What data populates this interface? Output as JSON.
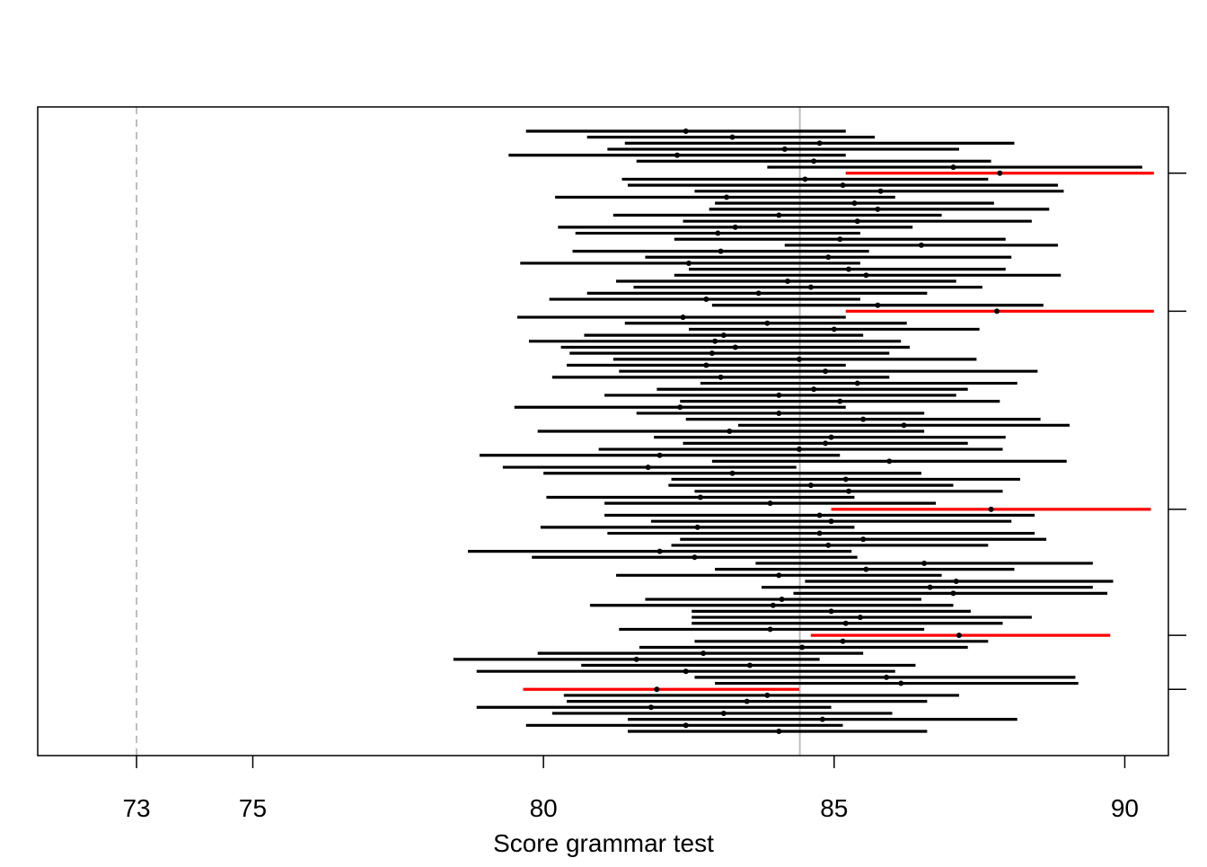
{
  "chart_data": {
    "type": "interval",
    "title": "",
    "xlabel": "Score grammar test",
    "ylabel": "",
    "xlim": [
      71.3,
      90.75
    ],
    "xticks": [
      73,
      75,
      80,
      85,
      90
    ],
    "xtick_labels": [
      "73",
      "75",
      "80",
      "85",
      "90"
    ],
    "y_ticks_on_right": true,
    "y_tick_labels_shown": false,
    "reference_lines": [
      {
        "value": 73,
        "style": "dashed",
        "color": "#bdbdbd"
      },
      {
        "value": 84.41,
        "style": "solid",
        "color": "#bdbdbd"
      }
    ],
    "colors": {
      "normal": "#000000",
      "miss": "#ff0000",
      "refline": "#bdbdbd"
    },
    "series": [
      {
        "name": "",
        "intervals": [
          {
            "lo": 79.7,
            "est": 82.45,
            "hi": 85.2,
            "miss": false
          },
          {
            "lo": 80.75,
            "est": 83.25,
            "hi": 85.7,
            "miss": false
          },
          {
            "lo": 81.4,
            "est": 84.75,
            "hi": 88.1,
            "miss": false
          },
          {
            "lo": 81.1,
            "est": 84.15,
            "hi": 87.15,
            "miss": false
          },
          {
            "lo": 79.4,
            "est": 82.3,
            "hi": 85.2,
            "miss": false
          },
          {
            "lo": 81.6,
            "est": 84.65,
            "hi": 87.7,
            "miss": false
          },
          {
            "lo": 83.85,
            "est": 87.05,
            "hi": 90.3,
            "miss": false
          },
          {
            "lo": 85.2,
            "est": 87.85,
            "hi": 90.5,
            "miss": true
          },
          {
            "lo": 81.35,
            "est": 84.5,
            "hi": 87.65,
            "miss": false
          },
          {
            "lo": 81.45,
            "est": 85.15,
            "hi": 88.85,
            "miss": false
          },
          {
            "lo": 82.6,
            "est": 85.8,
            "hi": 88.95,
            "miss": false
          },
          {
            "lo": 80.2,
            "est": 83.15,
            "hi": 86.05,
            "miss": false
          },
          {
            "lo": 82.95,
            "est": 85.35,
            "hi": 87.75,
            "miss": false
          },
          {
            "lo": 82.85,
            "est": 85.75,
            "hi": 88.7,
            "miss": false
          },
          {
            "lo": 81.2,
            "est": 84.05,
            "hi": 86.85,
            "miss": false
          },
          {
            "lo": 82.4,
            "est": 85.4,
            "hi": 88.4,
            "miss": false
          },
          {
            "lo": 80.25,
            "est": 83.3,
            "hi": 86.35,
            "miss": false
          },
          {
            "lo": 80.55,
            "est": 83.0,
            "hi": 85.45,
            "miss": false
          },
          {
            "lo": 82.25,
            "est": 85.1,
            "hi": 87.95,
            "miss": false
          },
          {
            "lo": 84.15,
            "est": 86.5,
            "hi": 88.85,
            "miss": false
          },
          {
            "lo": 80.5,
            "est": 83.05,
            "hi": 85.6,
            "miss": false
          },
          {
            "lo": 81.75,
            "est": 84.9,
            "hi": 88.05,
            "miss": false
          },
          {
            "lo": 79.6,
            "est": 82.5,
            "hi": 85.45,
            "miss": false
          },
          {
            "lo": 82.5,
            "est": 85.25,
            "hi": 87.95,
            "miss": false
          },
          {
            "lo": 82.25,
            "est": 85.55,
            "hi": 88.9,
            "miss": false
          },
          {
            "lo": 81.25,
            "est": 84.2,
            "hi": 87.1,
            "miss": false
          },
          {
            "lo": 81.55,
            "est": 84.6,
            "hi": 87.55,
            "miss": false
          },
          {
            "lo": 80.75,
            "est": 83.7,
            "hi": 86.6,
            "miss": false
          },
          {
            "lo": 80.1,
            "est": 82.8,
            "hi": 85.45,
            "miss": false
          },
          {
            "lo": 82.9,
            "est": 85.75,
            "hi": 88.6,
            "miss": false
          },
          {
            "lo": 85.2,
            "est": 87.8,
            "hi": 90.5,
            "miss": true
          },
          {
            "lo": 79.55,
            "est": 82.4,
            "hi": 85.2,
            "miss": false
          },
          {
            "lo": 81.4,
            "est": 83.85,
            "hi": 86.25,
            "miss": false
          },
          {
            "lo": 82.5,
            "est": 85.0,
            "hi": 87.5,
            "miss": false
          },
          {
            "lo": 80.7,
            "est": 83.1,
            "hi": 85.5,
            "miss": false
          },
          {
            "lo": 79.75,
            "est": 82.95,
            "hi": 86.15,
            "miss": false
          },
          {
            "lo": 80.3,
            "est": 83.3,
            "hi": 86.3,
            "miss": false
          },
          {
            "lo": 80.45,
            "est": 82.9,
            "hi": 85.95,
            "miss": false
          },
          {
            "lo": 81.2,
            "est": 84.4,
            "hi": 87.45,
            "miss": false
          },
          {
            "lo": 80.4,
            "est": 82.8,
            "hi": 85.2,
            "miss": false
          },
          {
            "lo": 81.3,
            "est": 84.85,
            "hi": 88.5,
            "miss": false
          },
          {
            "lo": 80.15,
            "est": 83.05,
            "hi": 85.95,
            "miss": false
          },
          {
            "lo": 82.7,
            "est": 85.4,
            "hi": 88.15,
            "miss": false
          },
          {
            "lo": 81.95,
            "est": 84.65,
            "hi": 87.3,
            "miss": false
          },
          {
            "lo": 81.05,
            "est": 84.05,
            "hi": 87.1,
            "miss": false
          },
          {
            "lo": 82.35,
            "est": 85.1,
            "hi": 87.85,
            "miss": false
          },
          {
            "lo": 79.5,
            "est": 82.35,
            "hi": 85.2,
            "miss": false
          },
          {
            "lo": 81.6,
            "est": 84.05,
            "hi": 86.55,
            "miss": false
          },
          {
            "lo": 82.45,
            "est": 85.5,
            "hi": 88.55,
            "miss": false
          },
          {
            "lo": 83.35,
            "est": 86.2,
            "hi": 89.05,
            "miss": false
          },
          {
            "lo": 79.9,
            "est": 83.2,
            "hi": 86.55,
            "miss": false
          },
          {
            "lo": 81.9,
            "est": 84.95,
            "hi": 87.95,
            "miss": false
          },
          {
            "lo": 82.4,
            "est": 84.85,
            "hi": 87.3,
            "miss": false
          },
          {
            "lo": 80.95,
            "est": 84.4,
            "hi": 87.9,
            "miss": false
          },
          {
            "lo": 78.9,
            "est": 82.0,
            "hi": 85.1,
            "miss": false
          },
          {
            "lo": 82.9,
            "est": 85.95,
            "hi": 89.0,
            "miss": false
          },
          {
            "lo": 79.3,
            "est": 81.8,
            "hi": 84.35,
            "miss": false
          },
          {
            "lo": 80.0,
            "est": 83.25,
            "hi": 86.5,
            "miss": false
          },
          {
            "lo": 82.2,
            "est": 85.2,
            "hi": 88.2,
            "miss": false
          },
          {
            "lo": 82.15,
            "est": 84.6,
            "hi": 87.05,
            "miss": false
          },
          {
            "lo": 82.6,
            "est": 85.25,
            "hi": 87.9,
            "miss": false
          },
          {
            "lo": 80.05,
            "est": 82.7,
            "hi": 85.35,
            "miss": false
          },
          {
            "lo": 81.05,
            "est": 83.9,
            "hi": 86.75,
            "miss": false
          },
          {
            "lo": 84.95,
            "est": 87.7,
            "hi": 90.45,
            "miss": true
          },
          {
            "lo": 81.05,
            "est": 84.75,
            "hi": 88.45,
            "miss": false
          },
          {
            "lo": 81.85,
            "est": 84.95,
            "hi": 88.05,
            "miss": false
          },
          {
            "lo": 79.95,
            "est": 82.65,
            "hi": 85.35,
            "miss": false
          },
          {
            "lo": 81.1,
            "est": 84.75,
            "hi": 88.45,
            "miss": false
          },
          {
            "lo": 82.35,
            "est": 85.5,
            "hi": 88.65,
            "miss": false
          },
          {
            "lo": 82.2,
            "est": 84.9,
            "hi": 87.65,
            "miss": false
          },
          {
            "lo": 78.7,
            "est": 82.0,
            "hi": 85.3,
            "miss": false
          },
          {
            "lo": 79.8,
            "est": 82.6,
            "hi": 85.4,
            "miss": false
          },
          {
            "lo": 83.65,
            "est": 86.55,
            "hi": 89.45,
            "miss": false
          },
          {
            "lo": 82.95,
            "est": 85.55,
            "hi": 88.1,
            "miss": false
          },
          {
            "lo": 81.25,
            "est": 84.05,
            "hi": 86.85,
            "miss": false
          },
          {
            "lo": 84.5,
            "est": 87.1,
            "hi": 89.8,
            "miss": false
          },
          {
            "lo": 83.75,
            "est": 86.65,
            "hi": 89.45,
            "miss": false
          },
          {
            "lo": 84.3,
            "est": 87.05,
            "hi": 89.7,
            "miss": false
          },
          {
            "lo": 81.75,
            "est": 84.1,
            "hi": 86.5,
            "miss": false
          },
          {
            "lo": 80.8,
            "est": 83.95,
            "hi": 87.05,
            "miss": false
          },
          {
            "lo": 82.55,
            "est": 84.95,
            "hi": 87.35,
            "miss": false
          },
          {
            "lo": 82.55,
            "est": 85.45,
            "hi": 88.4,
            "miss": false
          },
          {
            "lo": 82.55,
            "est": 85.2,
            "hi": 87.9,
            "miss": false
          },
          {
            "lo": 81.3,
            "est": 83.9,
            "hi": 86.55,
            "miss": false
          },
          {
            "lo": 84.6,
            "est": 87.15,
            "hi": 89.75,
            "miss": true
          },
          {
            "lo": 82.6,
            "est": 85.15,
            "hi": 87.65,
            "miss": false
          },
          {
            "lo": 81.65,
            "est": 84.45,
            "hi": 87.3,
            "miss": false
          },
          {
            "lo": 79.9,
            "est": 82.75,
            "hi": 85.5,
            "miss": false
          },
          {
            "lo": 78.45,
            "est": 81.6,
            "hi": 84.75,
            "miss": false
          },
          {
            "lo": 80.65,
            "est": 83.55,
            "hi": 86.4,
            "miss": false
          },
          {
            "lo": 78.85,
            "est": 82.45,
            "hi": 86.05,
            "miss": false
          },
          {
            "lo": 82.6,
            "est": 85.9,
            "hi": 89.15,
            "miss": false
          },
          {
            "lo": 82.95,
            "est": 86.15,
            "hi": 89.2,
            "miss": false
          },
          {
            "lo": 79.65,
            "est": 81.95,
            "hi": 84.4,
            "miss": true
          },
          {
            "lo": 80.35,
            "est": 83.85,
            "hi": 87.15,
            "miss": false
          },
          {
            "lo": 80.4,
            "est": 83.5,
            "hi": 86.6,
            "miss": false
          },
          {
            "lo": 78.85,
            "est": 81.85,
            "hi": 84.95,
            "miss": false
          },
          {
            "lo": 80.15,
            "est": 83.1,
            "hi": 86.0,
            "miss": false
          },
          {
            "lo": 81.45,
            "est": 84.8,
            "hi": 88.15,
            "miss": false
          },
          {
            "lo": 79.7,
            "est": 82.45,
            "hi": 85.15,
            "miss": false
          },
          {
            "lo": 81.45,
            "est": 84.05,
            "hi": 86.6,
            "miss": false
          }
        ]
      }
    ]
  }
}
